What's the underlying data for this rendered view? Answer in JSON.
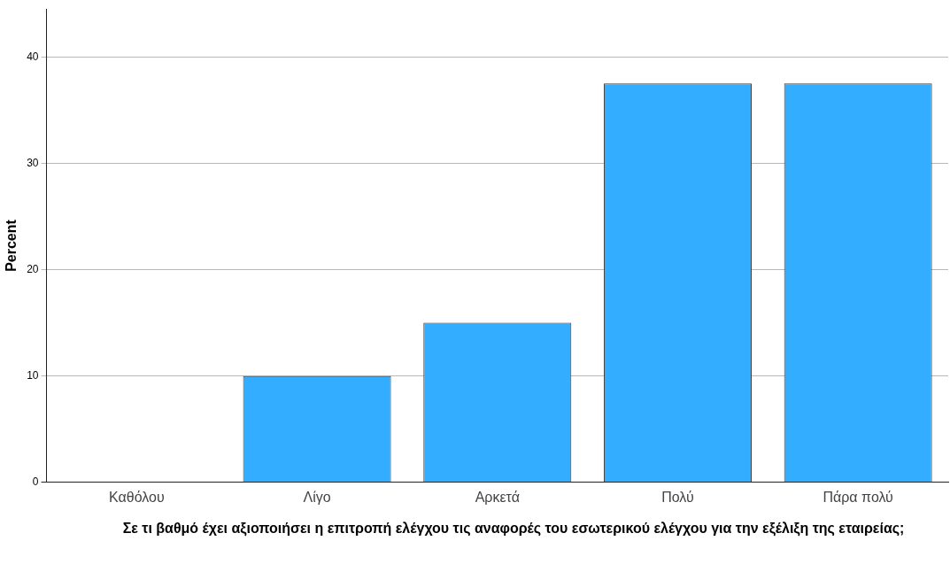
{
  "chart_data": {
    "type": "bar",
    "xlabel": "Σε τι βαθμό έχει αξιοποιήσει η επιτροπή ελέγχου τις αναφορές του εσωτερικού ελέγχου για την εξέλιξη της εταιρείας;",
    "ylabel": "Percent",
    "categories": [
      "Καθόλου",
      "Λίγο",
      "Αρκετά",
      "Πολύ",
      "Πάρα πολύ"
    ],
    "values": [
      0,
      10,
      15,
      37.5,
      37.5
    ],
    "color": "#33adff",
    "ylim": [
      0,
      44.5
    ],
    "yticks": [
      0,
      10,
      20,
      30,
      40
    ],
    "grid": "y",
    "legend": false
  }
}
